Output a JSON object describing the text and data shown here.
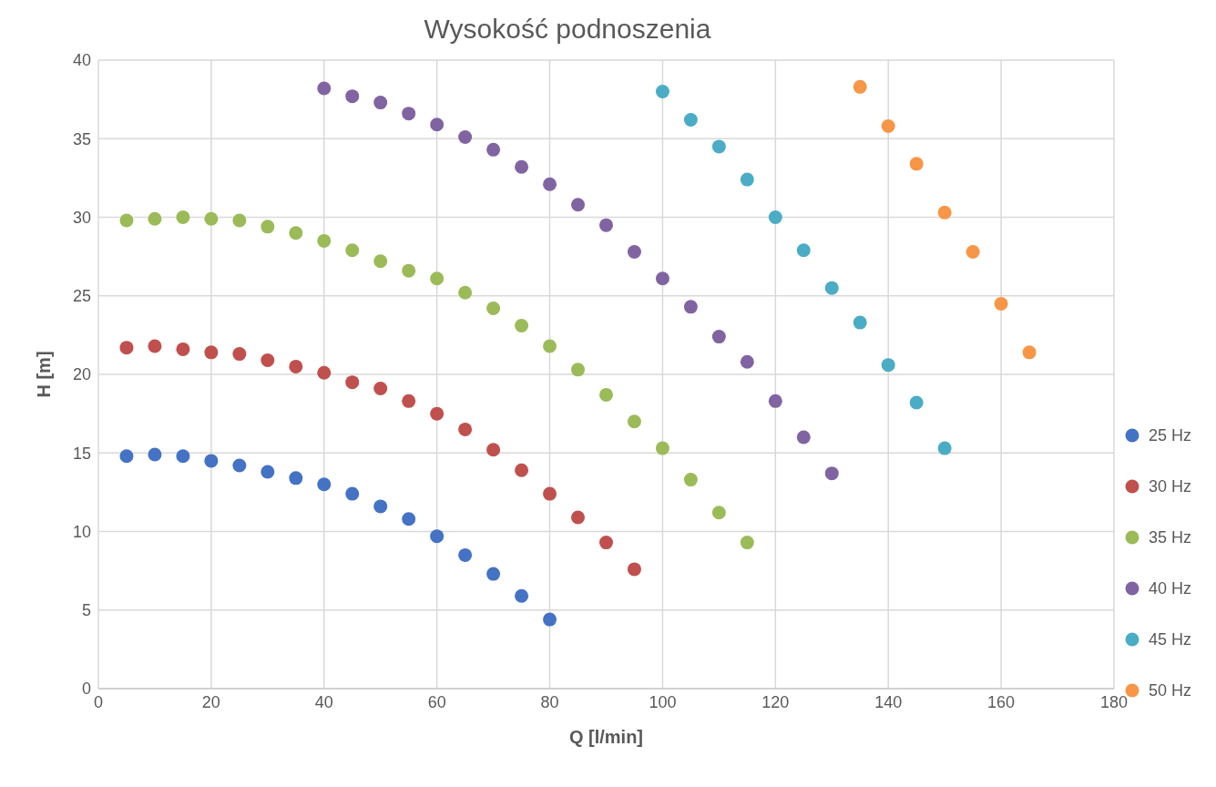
{
  "chart_data": {
    "type": "scatter",
    "title": "Wysokość podnoszenia",
    "xlabel": "Q [l/min]",
    "ylabel": "H [m]",
    "xlim": [
      0,
      180
    ],
    "xticks": [
      0,
      20,
      40,
      60,
      80,
      100,
      120,
      140,
      160,
      180
    ],
    "ylim": [
      0,
      40
    ],
    "yticks": [
      0,
      5,
      10,
      15,
      20,
      25,
      30,
      35,
      40
    ],
    "grid": true,
    "legend": "bottom right",
    "marker": "circle",
    "series": [
      {
        "name": "25 Hz",
        "color": "#4472c4",
        "x": [
          5,
          10,
          15,
          20,
          25,
          30,
          35,
          40,
          45,
          50,
          55,
          60,
          65,
          70,
          75,
          80
        ],
        "values": [
          14.8,
          14.9,
          14.8,
          14.5,
          14.2,
          13.8,
          13.4,
          13.0,
          12.4,
          11.6,
          10.8,
          9.7,
          8.5,
          7.3,
          5.9,
          4.4
        ]
      },
      {
        "name": "30 Hz",
        "color": "#c0504d",
        "x": [
          5,
          10,
          15,
          20,
          25,
          30,
          35,
          40,
          45,
          50,
          55,
          60,
          65,
          70,
          75,
          80,
          85,
          90,
          95
        ],
        "values": [
          21.7,
          21.8,
          21.6,
          21.4,
          21.3,
          20.9,
          20.5,
          20.1,
          19.5,
          19.1,
          18.3,
          17.5,
          16.5,
          15.2,
          13.9,
          12.4,
          10.9,
          9.3,
          7.6
        ]
      },
      {
        "name": "35 Hz",
        "color": "#9bbb59",
        "x": [
          5,
          10,
          15,
          20,
          25,
          30,
          35,
          40,
          45,
          50,
          55,
          60,
          65,
          70,
          75,
          80,
          85,
          90,
          95,
          100,
          105,
          110,
          115
        ],
        "values": [
          29.8,
          29.9,
          30.0,
          29.9,
          29.8,
          29.4,
          29.0,
          28.5,
          27.9,
          27.2,
          26.6,
          26.1,
          25.2,
          24.2,
          23.1,
          21.8,
          20.3,
          18.7,
          17.0,
          15.3,
          13.3,
          11.2,
          9.3
        ]
      },
      {
        "name": "40 Hz",
        "color": "#8064a2",
        "x": [
          40,
          45,
          50,
          55,
          60,
          65,
          70,
          75,
          80,
          85,
          90,
          95,
          100,
          105,
          110,
          115,
          120,
          125,
          130
        ],
        "values": [
          38.2,
          37.7,
          37.3,
          36.6,
          35.9,
          35.1,
          34.3,
          33.2,
          32.1,
          30.8,
          29.5,
          27.8,
          26.1,
          24.3,
          22.4,
          20.8,
          18.3,
          16.0,
          13.7
        ]
      },
      {
        "name": "45 Hz",
        "color": "#4bacc6",
        "x": [
          100,
          105,
          110,
          115,
          120,
          125,
          130,
          135,
          140,
          145,
          150
        ],
        "values": [
          38.0,
          36.2,
          34.5,
          32.4,
          30.0,
          27.9,
          25.5,
          23.3,
          20.6,
          18.2,
          15.3
        ]
      },
      {
        "name": "50 Hz",
        "color": "#f79646",
        "x": [
          135,
          140,
          145,
          150,
          155,
          160,
          165
        ],
        "values": [
          38.3,
          35.8,
          33.4,
          30.3,
          27.8,
          24.5,
          21.4
        ]
      }
    ]
  }
}
